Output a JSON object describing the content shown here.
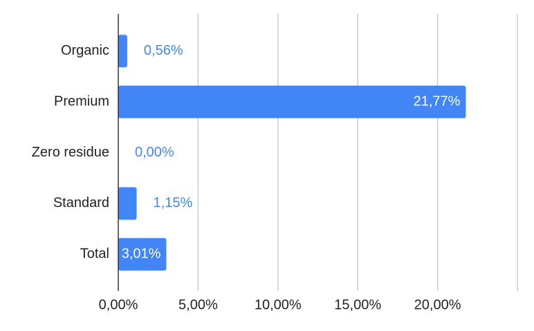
{
  "chart_data": {
    "type": "bar",
    "orientation": "horizontal",
    "categories": [
      "Organic",
      "Premium",
      "Zero residue",
      "Standard",
      "Total"
    ],
    "values": [
      0.56,
      21.77,
      0,
      1.15,
      3.01
    ],
    "value_labels": [
      "0,56%",
      "21,77%",
      "0,00%",
      "1,15%",
      "3,01%"
    ],
    "color": "#4285f4",
    "xlim": [
      0,
      25
    ],
    "xticks": [
      {
        "value": 0,
        "label": "0,00%"
      },
      {
        "value": 5,
        "label": "5,00%"
      },
      {
        "value": 10,
        "label": "10,00%"
      },
      {
        "value": 15,
        "label": "15,00%"
      },
      {
        "value": 20,
        "label": "20,00%"
      }
    ],
    "grid": true
  }
}
